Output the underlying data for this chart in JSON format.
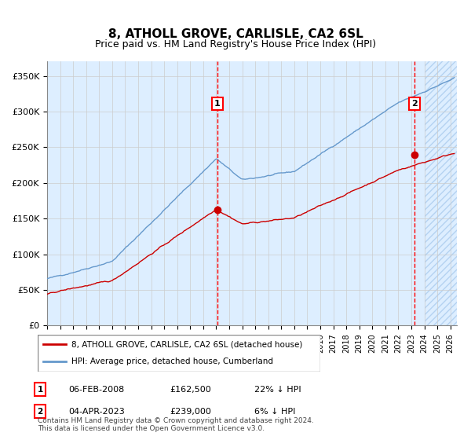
{
  "title": "8, ATHOLL GROVE, CARLISLE, CA2 6SL",
  "subtitle": "Price paid vs. HM Land Registry's House Price Index (HPI)",
  "ylabel_ticks": [
    "£0",
    "£50K",
    "£100K",
    "£150K",
    "£200K",
    "£250K",
    "£300K",
    "£350K"
  ],
  "ylim": [
    0,
    370000
  ],
  "xlim_start": 1995.0,
  "xlim_end": 2026.5,
  "bg_color": "#ddeeff",
  "hatch_color": "#aaccee",
  "grid_color": "#cccccc",
  "sale1": {
    "date_num": 2008.09,
    "price": 162500,
    "label": "1",
    "date_str": "06-FEB-2008",
    "pct": "22% ↓ HPI"
  },
  "sale2": {
    "date_num": 2023.25,
    "price": 239000,
    "label": "2",
    "date_str": "04-APR-2023",
    "pct": "6% ↓ HPI"
  },
  "legend1": "8, ATHOLL GROVE, CARLISLE, CA2 6SL (detached house)",
  "legend2": "HPI: Average price, detached house, Cumberland",
  "footer": "Contains HM Land Registry data © Crown copyright and database right 2024.\nThis data is licensed under the Open Government Licence v3.0.",
  "red_line_color": "#cc0000",
  "blue_line_color": "#6699cc"
}
